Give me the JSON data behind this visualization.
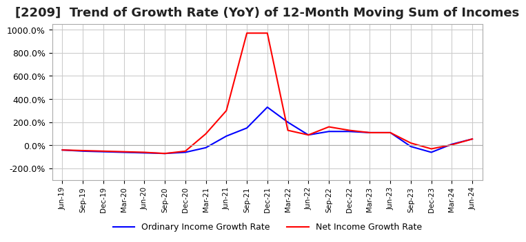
{
  "title": "[2209]  Trend of Growth Rate (YoY) of 12-Month Moving Sum of Incomes",
  "title_fontsize": 13,
  "xlabel": "",
  "ylabel": "",
  "ylim": [
    -300,
    1050
  ],
  "yticks": [
    -200,
    0,
    200,
    400,
    600,
    800,
    1000
  ],
  "ytick_labels": [
    "-200.0%",
    "0.0%",
    "200.0%",
    "400.0%",
    "600.0%",
    "800.0%",
    "1000.0%"
  ],
  "x_labels": [
    "Jun-19",
    "Sep-19",
    "Dec-19",
    "Mar-20",
    "Jun-20",
    "Sep-20",
    "Dec-20",
    "Mar-21",
    "Jun-21",
    "Sep-21",
    "Dec-21",
    "Mar-22",
    "Jun-22",
    "Sep-22",
    "Dec-22",
    "Mar-23",
    "Jun-23",
    "Sep-23",
    "Dec-23",
    "Mar-24",
    "Jun-24"
  ],
  "ordinary_income": [
    -40,
    -50,
    -55,
    -60,
    -65,
    -70,
    -60,
    -20,
    80,
    150,
    330,
    200,
    90,
    120,
    120,
    110,
    110,
    -10,
    -60,
    10,
    55
  ],
  "net_income": [
    -40,
    -45,
    -50,
    -55,
    -60,
    -70,
    -50,
    100,
    300,
    970,
    970,
    130,
    90,
    160,
    130,
    110,
    110,
    20,
    -30,
    5,
    55
  ],
  "ordinary_color": "#0000ff",
  "net_color": "#ff0000",
  "grid_color": "#cccccc",
  "bg_color": "#ffffff",
  "legend_ordinary": "Ordinary Income Growth Rate",
  "legend_net": "Net Income Growth Rate",
  "line_width": 1.5
}
